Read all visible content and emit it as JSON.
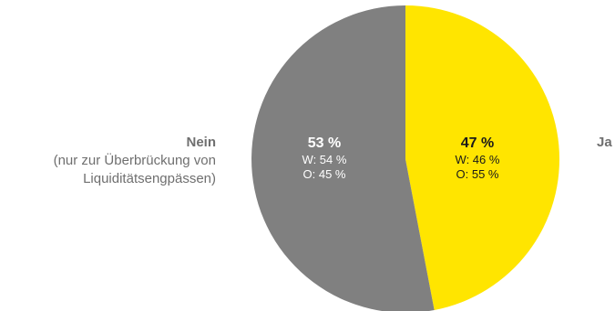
{
  "chart_data": {
    "type": "pie",
    "title": "",
    "start": "top",
    "direction": "clockwise",
    "slices": [
      {
        "name": "Ja",
        "sub": "",
        "value": 47,
        "label": "47 %",
        "details": [
          "W: 46 %",
          "O: 55 %"
        ],
        "color": "#ffe500"
      },
      {
        "name": "Nein",
        "sub": "(nur zur Überbrückung von Liquiditätsengpässen)",
        "value": 53,
        "label": "53 %",
        "details": [
          "W: 54 %",
          "O: 45 %"
        ],
        "color": "#808080"
      }
    ]
  },
  "labels": {
    "ja": {
      "title": "Ja"
    },
    "nein": {
      "title": "Nein",
      "line1": "(nur zur Überbrückung von",
      "line2": "Liquiditätsengpässen)"
    }
  }
}
